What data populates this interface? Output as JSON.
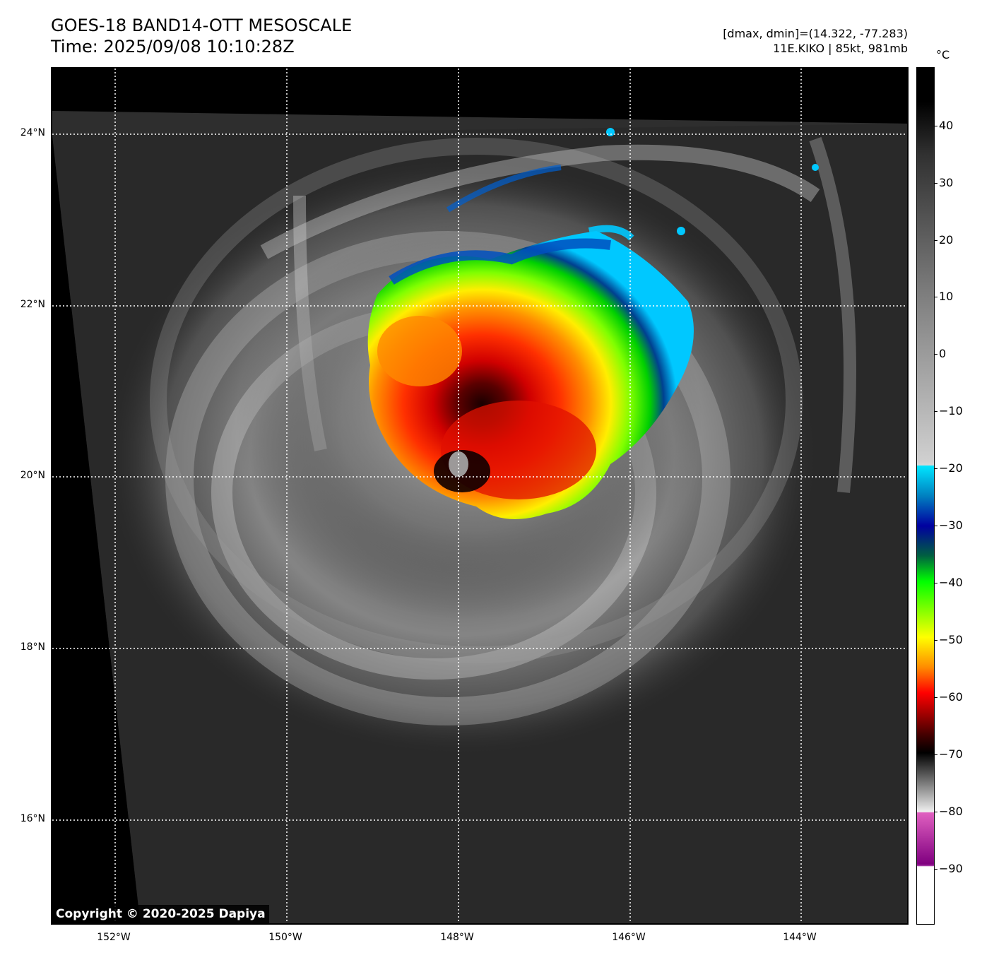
{
  "header": {
    "title_line1": "GOES-18 BAND14-OTT MESOSCALE",
    "title_line2": "Time: 2025/09/08 10:10:28Z",
    "range_text": "[dmax, dmin]=(14.322, -77.283)",
    "storm_text": "11E.KIKO | 85kt, 981mb"
  },
  "map": {
    "lat_ticks": [
      "24°N",
      "22°N",
      "20°N",
      "18°N",
      "16°N"
    ],
    "lon_ticks": [
      "152°W",
      "150°W",
      "148°W",
      "146°W",
      "144°W"
    ],
    "copyright": "Copyright © 2020-2025 Dapiya"
  },
  "colorbar": {
    "unit": "°C",
    "ticks": [
      "40",
      "30",
      "20",
      "10",
      "0",
      "−10",
      "−20",
      "−30",
      "−40",
      "−50",
      "−60",
      "−70",
      "−80",
      "−90"
    ],
    "colors": {
      "warm_black": "#000000",
      "gray_mid": "#808080",
      "light_gray": "#d0d0d0",
      "cyan": "#00e5ff",
      "blue": "#0000a0",
      "green": "#00ff00",
      "yellow": "#ffff00",
      "orange": "#ff8c00",
      "red": "#ff0000",
      "dark_red": "#400000",
      "magenta": "#e060c0",
      "purple": "#800080",
      "white": "#ffffff"
    }
  }
}
